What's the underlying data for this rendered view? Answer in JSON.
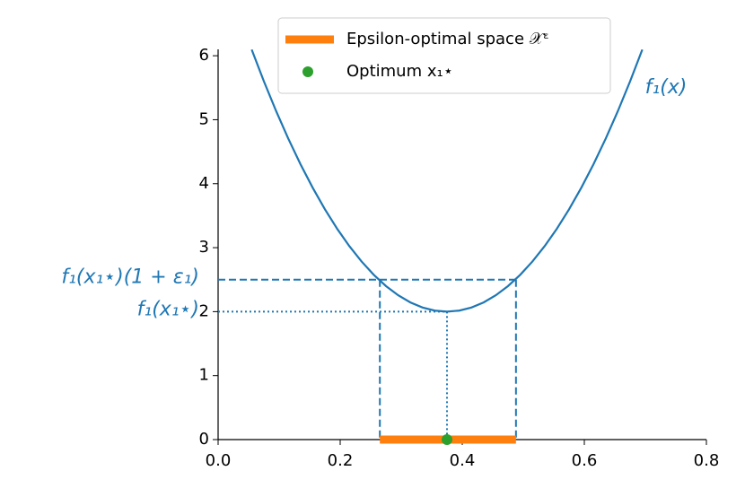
{
  "chart_data": {
    "type": "line",
    "series": [
      {
        "name": "f₁(x)",
        "color": "#1f77b4",
        "x": [
          0.055,
          0.075,
          0.095,
          0.115,
          0.135,
          0.155,
          0.175,
          0.195,
          0.215,
          0.235,
          0.255,
          0.275,
          0.295,
          0.315,
          0.335,
          0.355,
          0.375,
          0.395,
          0.415,
          0.435,
          0.455,
          0.475,
          0.495,
          0.515,
          0.535,
          0.555,
          0.575,
          0.595,
          0.615,
          0.635,
          0.655,
          0.675,
          0.695
        ],
        "values": [
          6.096,
          5.6,
          5.136,
          4.704,
          4.304,
          3.936,
          3.6,
          3.296,
          3.024,
          2.784,
          2.576,
          2.4,
          2.256,
          2.144,
          2.064,
          2.016,
          2,
          2.016,
          2.064,
          2.144,
          2.256,
          2.4,
          2.576,
          2.784,
          3.024,
          3.296,
          3.6,
          3.936,
          4.304,
          4.704,
          5.136,
          5.6,
          6.096
        ]
      }
    ],
    "epsilon_space": {
      "name": "Epsilon-optimal space 𝒳ᵋ",
      "color": "#ff7f0e",
      "x": [
        0.265,
        0.488
      ],
      "y": 0
    },
    "optimum": {
      "name": "Optimum x₁⋆",
      "color": "#2ca02c",
      "x": 0.375,
      "y": 0
    },
    "levels": [
      {
        "label": "f₁(x₁⋆)(1 + ε₁)",
        "value": 2.5,
        "x": [
          0.265,
          0.488
        ],
        "style": "dashed"
      },
      {
        "label": "f₁(x₁⋆)",
        "value": 2,
        "x": [
          0.375
        ],
        "style": "dotted"
      }
    ],
    "xlim": [
      0,
      0.8
    ],
    "xticks": [
      {
        "value": 0,
        "label": "0.0"
      },
      0.2,
      0.4,
      0.6,
      0.8
    ],
    "ylim": [
      0,
      6.1
    ],
    "yticks": [
      0,
      1,
      2,
      3,
      4,
      5,
      6
    ]
  }
}
